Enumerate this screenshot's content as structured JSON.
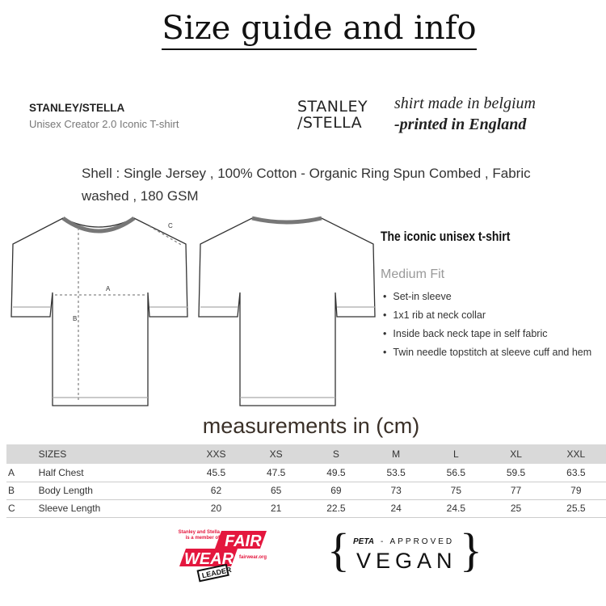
{
  "title": "Size guide and info",
  "brand": {
    "name": "STANLEY/STELLA",
    "model": "Unisex Creator 2.0 Iconic T-shirt",
    "logo_line1": "STANLEY",
    "logo_line2": "/STELLA"
  },
  "origin": {
    "made": "shirt made in belgium",
    "printed": "-printed in England"
  },
  "shell": "Shell : Single Jersey , 100% Cotton - Organic Ring Spun Combed , Fabric washed , 180 GSM",
  "diagram_labels": {
    "a": "A",
    "b": "B",
    "c": "C"
  },
  "features": {
    "heading": "The iconic unisex t-shirt",
    "fit": "Medium Fit",
    "bullets": [
      "Set-in sleeve",
      "1x1 rib at neck collar",
      "Inside back neck tape in self fabric",
      "Twin needle topstitch at sleeve cuff and hem"
    ]
  },
  "measurements_title": "measurements in (cm)",
  "table": {
    "header": {
      "label": "SIZES",
      "sizes": [
        "XXS",
        "XS",
        "S",
        "M",
        "L",
        "XL",
        "XXL"
      ]
    },
    "rows": [
      {
        "key": "A",
        "name": "Half Chest",
        "values": [
          "45.5",
          "47.5",
          "49.5",
          "53.5",
          "56.5",
          "59.5",
          "63.5"
        ]
      },
      {
        "key": "B",
        "name": "Body Length",
        "values": [
          "62",
          "65",
          "69",
          "73",
          "75",
          "77",
          "79"
        ]
      },
      {
        "key": "C",
        "name": "Sleeve Length",
        "values": [
          "20",
          "21",
          "22.5",
          "24",
          "24.5",
          "25",
          "25.5"
        ]
      }
    ]
  },
  "badges": {
    "fairwear": {
      "small": "Stanley and Stella is a member of",
      "fair": "FAIR",
      "wear": "WEAR",
      "url": "fairwear.org",
      "leader": "LEADER",
      "color": "#e4173e"
    },
    "peta": {
      "peta": "PETA",
      "approved": "- APPROVED",
      "vegan": "VEGAN"
    }
  }
}
